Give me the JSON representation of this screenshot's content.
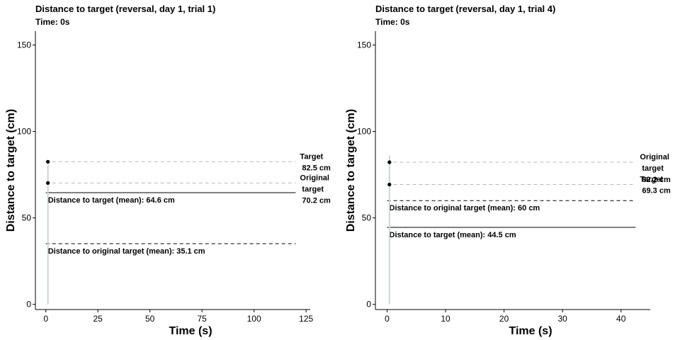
{
  "chart_data": [
    {
      "type": "line",
      "title": "Distance to target (reversal, day 1, trial 1)",
      "subtitle": "Time: 0s",
      "xlabel": "Time (s)",
      "ylabel": "Distance to target (cm)",
      "xlim": [
        -5,
        127
      ],
      "ylim": [
        -3,
        158
      ],
      "xticks": [
        0,
        25,
        50,
        75,
        100,
        125
      ],
      "yticks": [
        0,
        50,
        100,
        150
      ],
      "grid": false,
      "points": [
        {
          "name": "target",
          "x": 1,
          "y": 82.5
        },
        {
          "name": "original-target",
          "x": 1,
          "y": 70.2
        }
      ],
      "trace": {
        "x": [
          1,
          1
        ],
        "y": [
          0,
          82.5
        ]
      },
      "hlines": [
        {
          "name": "target-level",
          "y": 82.5,
          "x": [
            0,
            120
          ],
          "style": "dashed-gray",
          "label": [
            "Target",
            "82.5  cm"
          ],
          "label_pos": "right"
        },
        {
          "name": "original-target-level",
          "y": 70.2,
          "x": [
            0,
            120
          ],
          "style": "dashed-gray",
          "label": [
            "Original",
            "target",
            "70.2  cm"
          ],
          "label_pos": "right"
        },
        {
          "name": "mean-distance-to-target",
          "y": 64.6,
          "x": [
            0,
            120
          ],
          "style": "solid",
          "label": [
            "Distance to target (mean): 64.6  cm"
          ],
          "label_pos": "below-left"
        },
        {
          "name": "mean-distance-to-original",
          "y": 35.1,
          "x": [
            0,
            120
          ],
          "style": "dashed",
          "label": [
            "Distance to original target (mean): 35.1  cm"
          ],
          "label_pos": "below-left"
        }
      ]
    },
    {
      "type": "line",
      "title": "Distance to target (reversal, day 1, trial 4)",
      "subtitle": "Time: 0s",
      "xlabel": "Time (s)",
      "ylabel": "Distance to target (cm)",
      "xlim": [
        -2,
        45
      ],
      "ylim": [
        -3,
        158
      ],
      "xticks": [
        0,
        10,
        20,
        30,
        40
      ],
      "yticks": [
        0,
        50,
        100,
        150
      ],
      "grid": false,
      "points": [
        {
          "name": "original-target",
          "x": 0.4,
          "y": 82.2
        },
        {
          "name": "target",
          "x": 0.4,
          "y": 69.3
        }
      ],
      "trace": {
        "x": [
          0.4,
          0.4
        ],
        "y": [
          0,
          86
        ]
      },
      "hlines": [
        {
          "name": "original-target-level",
          "y": 82.2,
          "x": [
            0,
            42.5
          ],
          "style": "dashed-gray",
          "label": [
            "Original",
            "target",
            "82.2  cm"
          ],
          "label_pos": "right"
        },
        {
          "name": "target-level",
          "y": 69.3,
          "x": [
            0,
            42.5
          ],
          "style": "dashed-gray",
          "label": [
            "Target",
            "69.3  cm"
          ],
          "label_pos": "right"
        },
        {
          "name": "mean-distance-to-original",
          "y": 60,
          "x": [
            0,
            42.5
          ],
          "style": "dashed",
          "label": [
            "Distance to original target (mean): 60  cm"
          ],
          "label_pos": "above-left"
        },
        {
          "name": "mean-distance-to-target",
          "y": 44.5,
          "x": [
            0,
            42.5
          ],
          "style": "solid",
          "label": [
            "Distance to target (mean): 44.5  cm"
          ],
          "label_pos": "below-left"
        }
      ]
    }
  ]
}
